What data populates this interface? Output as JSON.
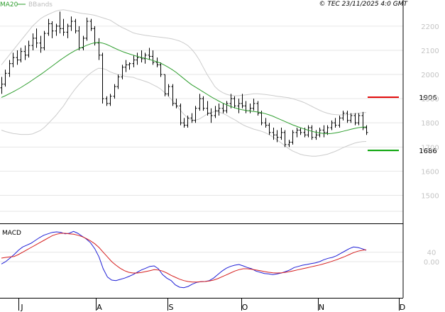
{
  "header": {
    "legend": [
      {
        "label": "MA20",
        "color": "#2e9e2e"
      },
      {
        "label": "BBands",
        "color": "#bdbdbd"
      }
    ],
    "copyright": "© TEC 23/11/2025 4:0 GMT"
  },
  "chart_data": [
    {
      "type": "candlestick",
      "panel": "price",
      "y_ticks": [
        2200,
        2100,
        2000,
        1900,
        1800,
        1700,
        1600,
        1500
      ],
      "y_tick_labels": [
        "2200",
        "2100",
        "2000",
        "1900",
        "1800",
        "1700",
        "1600",
        "1500"
      ],
      "ylim": [
        1390,
        2270
      ],
      "months": [
        "J",
        "A",
        "S",
        "O",
        "N",
        "D"
      ],
      "levels": [
        {
          "label": "1906",
          "value": 1906,
          "color": "#e00000"
        },
        {
          "label": "1686",
          "value": 1686,
          "color": "#00a000"
        }
      ],
      "indicators": [
        {
          "name": "MA20",
          "color": "#2e9e2e"
        },
        {
          "name": "BBands",
          "color": "#bdbdbd"
        }
      ],
      "bars": [
        {
          "o": 1945,
          "h": 1990,
          "l": 1920,
          "c": 1960
        },
        {
          "o": 1960,
          "h": 2020,
          "l": 1950,
          "c": 2005
        },
        {
          "o": 2005,
          "h": 2060,
          "l": 1990,
          "c": 2045
        },
        {
          "o": 2045,
          "h": 2090,
          "l": 2030,
          "c": 2070
        },
        {
          "o": 2070,
          "h": 2100,
          "l": 2040,
          "c": 2060
        },
        {
          "o": 2060,
          "h": 2110,
          "l": 2050,
          "c": 2095
        },
        {
          "o": 2095,
          "h": 2120,
          "l": 2060,
          "c": 2080
        },
        {
          "o": 2080,
          "h": 2140,
          "l": 2070,
          "c": 2120
        },
        {
          "o": 2120,
          "h": 2170,
          "l": 2100,
          "c": 2150
        },
        {
          "o": 2150,
          "h": 2190,
          "l": 2110,
          "c": 2130
        },
        {
          "o": 2130,
          "h": 2160,
          "l": 2090,
          "c": 2110
        },
        {
          "o": 2110,
          "h": 2180,
          "l": 2100,
          "c": 2170
        },
        {
          "o": 2170,
          "h": 2230,
          "l": 2160,
          "c": 2210
        },
        {
          "o": 2210,
          "h": 2220,
          "l": 2150,
          "c": 2180
        },
        {
          "o": 2180,
          "h": 2210,
          "l": 2160,
          "c": 2200
        },
        {
          "o": 2200,
          "h": 2260,
          "l": 2170,
          "c": 2190
        },
        {
          "o": 2190,
          "h": 2230,
          "l": 2160,
          "c": 2175
        },
        {
          "o": 2175,
          "h": 2210,
          "l": 2150,
          "c": 2200
        },
        {
          "o": 2200,
          "h": 2240,
          "l": 2180,
          "c": 2220
        },
        {
          "o": 2220,
          "h": 2230,
          "l": 2170,
          "c": 2180
        },
        {
          "o": 2180,
          "h": 2200,
          "l": 2100,
          "c": 2110
        },
        {
          "o": 2110,
          "h": 2160,
          "l": 2100,
          "c": 2150
        },
        {
          "o": 2150,
          "h": 2235,
          "l": 2140,
          "c": 2220
        },
        {
          "o": 2220,
          "h": 2230,
          "l": 2180,
          "c": 2190
        },
        {
          "o": 2190,
          "h": 2200,
          "l": 2120,
          "c": 2130
        },
        {
          "o": 2130,
          "h": 2150,
          "l": 2060,
          "c": 2080
        },
        {
          "o": 2080,
          "h": 2090,
          "l": 1880,
          "c": 1900
        },
        {
          "o": 1900,
          "h": 1910,
          "l": 1870,
          "c": 1880
        },
        {
          "o": 1880,
          "h": 1920,
          "l": 1870,
          "c": 1910
        },
        {
          "o": 1910,
          "h": 1960,
          "l": 1900,
          "c": 1950
        },
        {
          "o": 1950,
          "h": 2000,
          "l": 1940,
          "c": 1990
        },
        {
          "o": 1990,
          "h": 2040,
          "l": 1980,
          "c": 2030
        },
        {
          "o": 2030,
          "h": 2060,
          "l": 2010,
          "c": 2040
        },
        {
          "o": 2040,
          "h": 2050,
          "l": 2020,
          "c": 2045
        },
        {
          "o": 2045,
          "h": 2080,
          "l": 2030,
          "c": 2060
        },
        {
          "o": 2060,
          "h": 2090,
          "l": 2040,
          "c": 2070
        },
        {
          "o": 2070,
          "h": 2100,
          "l": 2050,
          "c": 2065
        },
        {
          "o": 2065,
          "h": 2090,
          "l": 2045,
          "c": 2080
        },
        {
          "o": 2080,
          "h": 2110,
          "l": 2060,
          "c": 2075
        },
        {
          "o": 2075,
          "h": 2100,
          "l": 2040,
          "c": 2050
        },
        {
          "o": 2050,
          "h": 2070,
          "l": 2030,
          "c": 2040
        },
        {
          "o": 2040,
          "h": 2050,
          "l": 1990,
          "c": 2000
        },
        {
          "o": 2000,
          "h": 2000,
          "l": 1910,
          "c": 1920
        },
        {
          "o": 1920,
          "h": 1960,
          "l": 1910,
          "c": 1950
        },
        {
          "o": 1950,
          "h": 1960,
          "l": 1870,
          "c": 1880
        },
        {
          "o": 1880,
          "h": 1900,
          "l": 1860,
          "c": 1870
        },
        {
          "o": 1870,
          "h": 1880,
          "l": 1790,
          "c": 1800
        },
        {
          "o": 1800,
          "h": 1820,
          "l": 1780,
          "c": 1790
        },
        {
          "o": 1790,
          "h": 1830,
          "l": 1780,
          "c": 1820
        },
        {
          "o": 1820,
          "h": 1840,
          "l": 1800,
          "c": 1810
        },
        {
          "o": 1810,
          "h": 1870,
          "l": 1800,
          "c": 1860
        },
        {
          "o": 1860,
          "h": 1920,
          "l": 1850,
          "c": 1900
        },
        {
          "o": 1900,
          "h": 1910,
          "l": 1850,
          "c": 1860
        },
        {
          "o": 1860,
          "h": 1890,
          "l": 1830,
          "c": 1840
        },
        {
          "o": 1840,
          "h": 1860,
          "l": 1800,
          "c": 1830
        },
        {
          "o": 1830,
          "h": 1870,
          "l": 1820,
          "c": 1850
        },
        {
          "o": 1850,
          "h": 1880,
          "l": 1830,
          "c": 1860
        },
        {
          "o": 1860,
          "h": 1880,
          "l": 1840,
          "c": 1850
        },
        {
          "o": 1850,
          "h": 1890,
          "l": 1840,
          "c": 1880
        },
        {
          "o": 1880,
          "h": 1920,
          "l": 1860,
          "c": 1900
        },
        {
          "o": 1900,
          "h": 1910,
          "l": 1860,
          "c": 1870
        },
        {
          "o": 1870,
          "h": 1900,
          "l": 1840,
          "c": 1880
        },
        {
          "o": 1880,
          "h": 1920,
          "l": 1860,
          "c": 1870
        },
        {
          "o": 1870,
          "h": 1890,
          "l": 1840,
          "c": 1850
        },
        {
          "o": 1850,
          "h": 1880,
          "l": 1840,
          "c": 1860
        },
        {
          "o": 1860,
          "h": 1900,
          "l": 1850,
          "c": 1880
        },
        {
          "o": 1880,
          "h": 1890,
          "l": 1830,
          "c": 1840
        },
        {
          "o": 1840,
          "h": 1850,
          "l": 1790,
          "c": 1800
        },
        {
          "o": 1800,
          "h": 1820,
          "l": 1780,
          "c": 1790
        },
        {
          "o": 1790,
          "h": 1800,
          "l": 1750,
          "c": 1760
        },
        {
          "o": 1760,
          "h": 1780,
          "l": 1730,
          "c": 1750
        },
        {
          "o": 1750,
          "h": 1770,
          "l": 1720,
          "c": 1740
        },
        {
          "o": 1740,
          "h": 1780,
          "l": 1730,
          "c": 1760
        },
        {
          "o": 1760,
          "h": 1770,
          "l": 1700,
          "c": 1710
        },
        {
          "o": 1710,
          "h": 1730,
          "l": 1700,
          "c": 1720
        },
        {
          "o": 1720,
          "h": 1770,
          "l": 1710,
          "c": 1760
        },
        {
          "o": 1760,
          "h": 1780,
          "l": 1740,
          "c": 1770
        },
        {
          "o": 1770,
          "h": 1780,
          "l": 1750,
          "c": 1760
        },
        {
          "o": 1760,
          "h": 1780,
          "l": 1740,
          "c": 1750
        },
        {
          "o": 1750,
          "h": 1790,
          "l": 1740,
          "c": 1780
        },
        {
          "o": 1780,
          "h": 1790,
          "l": 1730,
          "c": 1740
        },
        {
          "o": 1740,
          "h": 1770,
          "l": 1730,
          "c": 1750
        },
        {
          "o": 1750,
          "h": 1780,
          "l": 1740,
          "c": 1770
        },
        {
          "o": 1770,
          "h": 1790,
          "l": 1740,
          "c": 1760
        },
        {
          "o": 1760,
          "h": 1790,
          "l": 1750,
          "c": 1780
        },
        {
          "o": 1780,
          "h": 1810,
          "l": 1770,
          "c": 1800
        },
        {
          "o": 1800,
          "h": 1820,
          "l": 1780,
          "c": 1790
        },
        {
          "o": 1790,
          "h": 1830,
          "l": 1780,
          "c": 1820
        },
        {
          "o": 1820,
          "h": 1850,
          "l": 1810,
          "c": 1840
        },
        {
          "o": 1840,
          "h": 1850,
          "l": 1800,
          "c": 1810
        },
        {
          "o": 1810,
          "h": 1840,
          "l": 1800,
          "c": 1830
        },
        {
          "o": 1830,
          "h": 1840,
          "l": 1790,
          "c": 1800
        },
        {
          "o": 1800,
          "h": 1840,
          "l": 1790,
          "c": 1830
        },
        {
          "o": 1830,
          "h": 1845,
          "l": 1770,
          "c": 1780
        },
        {
          "o": 1780,
          "h": 1790,
          "l": 1750,
          "c": 1760
        }
      ],
      "ma20": [
        1905,
        1912,
        1920,
        1928,
        1937,
        1946,
        1956,
        1966,
        1977,
        1988,
        1999,
        2010,
        2022,
        2034,
        2046,
        2058,
        2069,
        2080,
        2090,
        2099,
        2107,
        2114,
        2121,
        2127,
        2131,
        2133,
        2130,
        2125,
        2118,
        2110,
        2103,
        2096,
        2090,
        2085,
        2080,
        2075,
        2071,
        2067,
        2063,
        2058,
        2053,
        2047,
        2039,
        2030,
        2020,
        2009,
        1996,
        1983,
        1970,
        1958,
        1948,
        1938,
        1928,
        1918,
        1908,
        1899,
        1890,
        1882,
        1875,
        1868,
        1863,
        1858,
        1854,
        1851,
        1849,
        1847,
        1845,
        1842,
        1838,
        1833,
        1827,
        1820,
        1813,
        1806,
        1799,
        1792,
        1786,
        1780,
        1775,
        1770,
        1765,
        1761,
        1758,
        1756,
        1755,
        1756,
        1758,
        1761,
        1765,
        1769,
        1773,
        1777,
        1780,
        1782,
        1783
      ],
      "bb_upper": [
        2040,
        2060,
        2080,
        2100,
        2120,
        2140,
        2160,
        2180,
        2200,
        2215,
        2230,
        2240,
        2248,
        2255,
        2262,
        2266,
        2268,
        2265,
        2262,
        2258,
        2255,
        2252,
        2250,
        2248,
        2245,
        2240,
        2235,
        2230,
        2225,
        2215,
        2205,
        2195,
        2188,
        2180,
        2172,
        2168,
        2165,
        2162,
        2160,
        2158,
        2156,
        2154,
        2152,
        2150,
        2147,
        2143,
        2138,
        2130,
        2120,
        2105,
        2085,
        2060,
        2030,
        2000,
        1975,
        1950,
        1935,
        1925,
        1918,
        1914,
        1912,
        1912,
        1914,
        1916,
        1918,
        1920,
        1920,
        1919,
        1917,
        1915,
        1913,
        1910,
        1908,
        1906,
        1904,
        1900,
        1895,
        1890,
        1884,
        1876,
        1868,
        1860,
        1852,
        1845,
        1840,
        1836,
        1834,
        1833,
        1833,
        1834,
        1836,
        1838,
        1840,
        1842,
        1843
      ],
      "bb_lower": [
        1770,
        1764,
        1760,
        1756,
        1754,
        1752,
        1752,
        1752,
        1754,
        1761,
        1768,
        1780,
        1796,
        1813,
        1830,
        1850,
        1870,
        1895,
        1918,
        1940,
        1959,
        1976,
        1992,
        2006,
        2017,
        2026,
        2025,
        2020,
        2011,
        2005,
        2001,
        1997,
        1992,
        1990,
        1988,
        1982,
        1977,
        1972,
        1966,
        1958,
        1950,
        1940,
        1926,
        1910,
        1893,
        1875,
        1854,
        1836,
        1820,
        1811,
        1811,
        1816,
        1826,
        1836,
        1841,
        1848,
        1845,
        1839,
        1832,
        1822,
        1814,
        1804,
        1794,
        1786,
        1780,
        1774,
        1770,
        1765,
        1759,
        1751,
        1741,
        1730,
        1718,
        1706,
        1694,
        1684,
        1677,
        1670,
        1666,
        1664,
        1662,
        1662,
        1664,
        1667,
        1670,
        1676,
        1682,
        1689,
        1697,
        1704,
        1710,
        1716,
        1720,
        1722,
        1723
      ]
    },
    {
      "type": "line",
      "panel": "macd",
      "title": "MACD",
      "y_ticks": [
        40,
        0
      ],
      "y_tick_labels": [
        "40",
        "0.00"
      ],
      "ylim": [
        -135,
        150
      ],
      "series": [
        {
          "color": "#1f1fd6",
          "values": [
            -10,
            0,
            15,
            30,
            48,
            62,
            70,
            78,
            90,
            102,
            112,
            118,
            124,
            126,
            124,
            118,
            120,
            128,
            120,
            108,
            96,
            80,
            55,
            20,
            -30,
            -65,
            -78,
            -80,
            -75,
            -70,
            -63,
            -55,
            -45,
            -35,
            -28,
            -20,
            -18,
            -30,
            -55,
            -70,
            -80,
            -98,
            -108,
            -110,
            -105,
            -95,
            -88,
            -85,
            -84,
            -80,
            -70,
            -55,
            -40,
            -28,
            -20,
            -15,
            -12,
            -18,
            -25,
            -30,
            -40,
            -45,
            -50,
            -52,
            -55,
            -52,
            -48,
            -42,
            -35,
            -25,
            -20,
            -15,
            -12,
            -8,
            -5,
            0,
            8,
            14,
            18,
            25,
            35,
            45,
            55,
            62,
            60,
            55,
            48
          ]
        },
        {
          "color": "#d61f1f",
          "values": [
            15,
            18,
            20,
            22,
            30,
            40,
            50,
            60,
            70,
            80,
            90,
            100,
            110,
            116,
            120,
            120,
            118,
            116,
            112,
            106,
            98,
            88,
            76,
            60,
            40,
            20,
            0,
            -15,
            -28,
            -38,
            -45,
            -48,
            -48,
            -46,
            -42,
            -38,
            -34,
            -35,
            -40,
            -48,
            -58,
            -66,
            -74,
            -80,
            -84,
            -86,
            -86,
            -85,
            -84,
            -82,
            -78,
            -72,
            -64,
            -56,
            -48,
            -40,
            -34,
            -30,
            -30,
            -32,
            -35,
            -38,
            -42,
            -45,
            -47,
            -48,
            -47,
            -45,
            -42,
            -38,
            -34,
            -30,
            -26,
            -22,
            -18,
            -14,
            -9,
            -4,
            2,
            8,
            15,
            22,
            30,
            38,
            44,
            48,
            50
          ]
        }
      ]
    }
  ]
}
